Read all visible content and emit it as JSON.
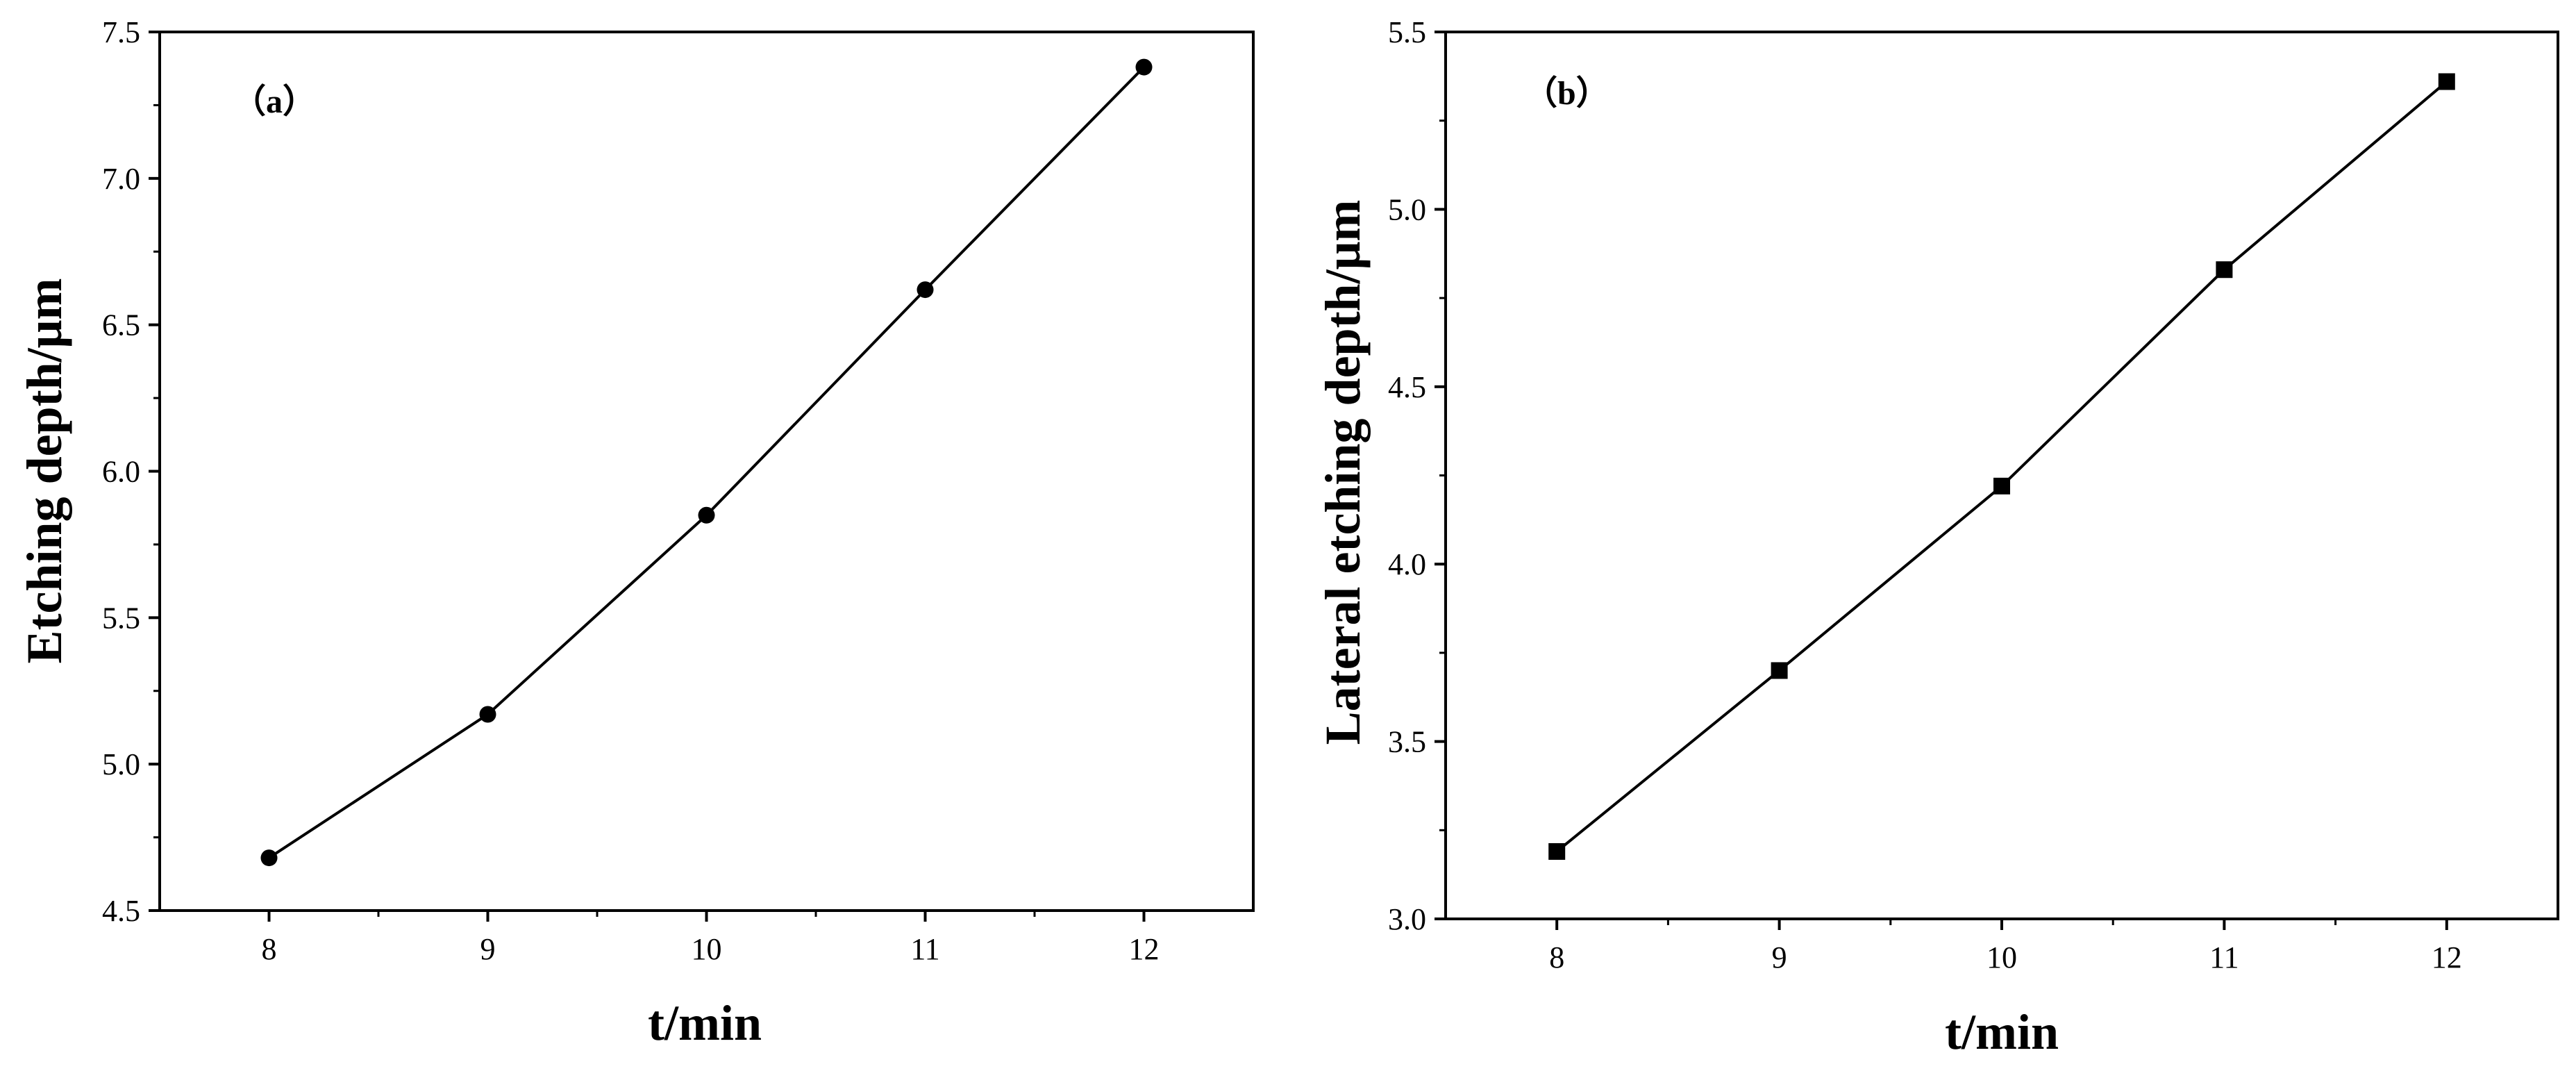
{
  "chart_data": [
    {
      "type": "line",
      "panel_label": "（a）",
      "title": "",
      "xlabel": "t/min",
      "ylabel": "Etching depth/μm",
      "x": [
        8,
        9,
        10,
        11,
        12
      ],
      "series": [
        {
          "name": "",
          "marker": "circle",
          "values": [
            4.68,
            5.17,
            5.85,
            6.62,
            7.38
          ]
        }
      ],
      "xlim": [
        7.5,
        12.5
      ],
      "ylim": [
        4.5,
        7.5
      ],
      "xticks": [
        8,
        9,
        10,
        11,
        12
      ],
      "xtick_labels": [
        "8",
        "9",
        "10",
        "11",
        "12"
      ],
      "yticks": [
        4.5,
        5.0,
        5.5,
        6.0,
        6.5,
        7.0,
        7.5
      ],
      "ytick_labels": [
        "4.5",
        "5.0",
        "5.5",
        "6.0",
        "6.5",
        "7.0",
        "7.5"
      ],
      "grid": false,
      "legend": "none",
      "line_color": "#000000"
    },
    {
      "type": "line",
      "panel_label": "（b）",
      "title": "",
      "xlabel": "t/min",
      "ylabel": "Lateral etching depth/μm",
      "x": [
        8,
        9,
        10,
        11,
        12
      ],
      "series": [
        {
          "name": "",
          "marker": "square",
          "values": [
            3.19,
            3.7,
            4.22,
            4.83,
            5.36
          ]
        }
      ],
      "xlim": [
        7.5,
        12.5
      ],
      "ylim": [
        3.0,
        5.5
      ],
      "xticks": [
        8,
        9,
        10,
        11,
        12
      ],
      "xtick_labels": [
        "8",
        "9",
        "10",
        "11",
        "12"
      ],
      "yticks": [
        3.0,
        3.5,
        4.0,
        4.5,
        5.0,
        5.5
      ],
      "ytick_labels": [
        "3.0",
        "3.5",
        "4.0",
        "4.5",
        "5.0",
        "5.5"
      ],
      "grid": false,
      "legend": "none",
      "line_color": "#000000"
    }
  ]
}
